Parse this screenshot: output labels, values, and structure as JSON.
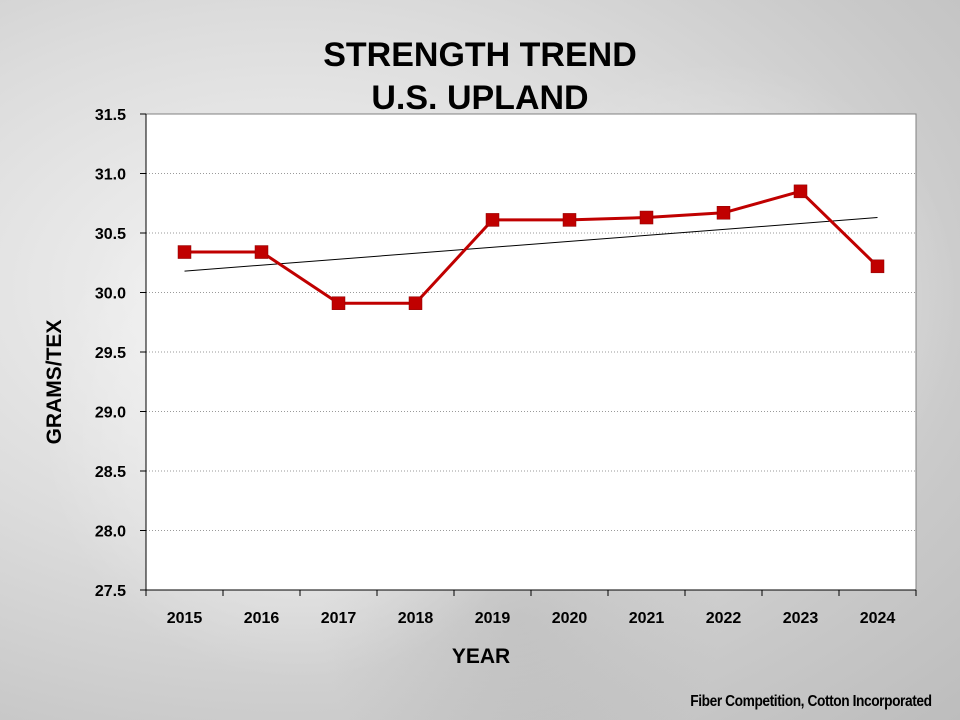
{
  "chart_data": {
    "type": "line",
    "title": "STRENGTH TREND",
    "subtitle": "U.S. UPLAND",
    "xlabel": "YEAR",
    "ylabel": "GRAMS/TEX",
    "categories": [
      "2015",
      "2016",
      "2017",
      "2018",
      "2019",
      "2020",
      "2021",
      "2022",
      "2023",
      "2024"
    ],
    "series": [
      {
        "name": "Strength",
        "values": [
          30.34,
          30.34,
          29.91,
          29.91,
          30.61,
          30.61,
          30.63,
          30.67,
          30.85,
          30.22
        ],
        "color": "#c00000"
      }
    ],
    "trendline": {
      "start": 30.18,
      "end": 30.63,
      "color": "#000000"
    },
    "ylim": [
      27.5,
      31.5
    ],
    "yticks": [
      "27.5",
      "28.0",
      "28.5",
      "29.0",
      "29.5",
      "30.0",
      "30.5",
      "31.0",
      "31.5"
    ],
    "grid": true,
    "source": "Fiber Competition, Cotton Incorporated"
  }
}
